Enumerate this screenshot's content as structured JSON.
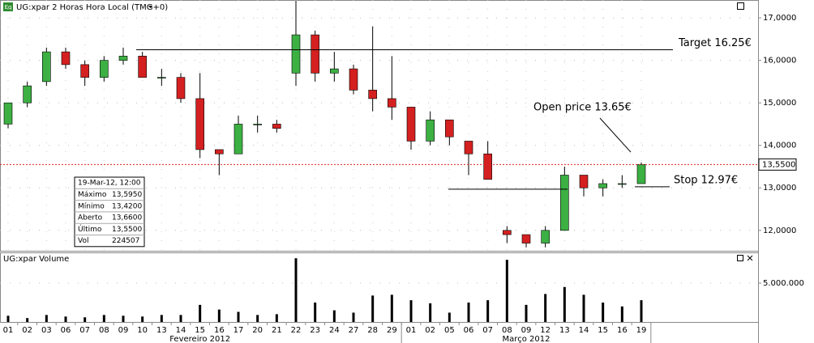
{
  "chart_data": {
    "type": "candlestick",
    "title": "UG:xpar 2 Horas Hora Local (TMG+0)",
    "badge": "Eq",
    "categories": [
      "01",
      "02",
      "03",
      "06",
      "07",
      "08",
      "09",
      "10",
      "13",
      "14",
      "15",
      "16",
      "17",
      "20",
      "21",
      "22",
      "23",
      "24",
      "27",
      "28",
      "29",
      "01",
      "02",
      "05",
      "06",
      "07",
      "08",
      "09",
      "12",
      "13",
      "14",
      "15",
      "16",
      "19"
    ],
    "months": [
      {
        "label": "Fevereiro 2012",
        "from": 0,
        "to": 20
      },
      {
        "label": "Março 2012",
        "from": 21,
        "to": 33
      }
    ],
    "open": [
      14.5,
      15.0,
      15.5,
      16.2,
      15.9,
      15.6,
      16.0,
      16.1,
      15.6,
      15.6,
      15.1,
      13.9,
      13.8,
      14.5,
      14.5,
      15.7,
      16.6,
      15.7,
      15.8,
      15.3,
      15.1,
      14.9,
      14.1,
      14.6,
      14.1,
      13.8,
      12.0,
      11.9,
      11.7,
      12.0,
      13.3,
      13.0,
      13.1,
      13.1
    ],
    "high": [
      15.0,
      15.5,
      16.3,
      16.3,
      16.0,
      16.1,
      16.3,
      16.2,
      15.8,
      15.7,
      15.7,
      13.9,
      14.7,
      14.7,
      14.6,
      17.4,
      16.7,
      16.2,
      15.9,
      16.8,
      16.1,
      14.9,
      14.8,
      14.6,
      14.1,
      14.1,
      12.1,
      11.9,
      12.1,
      13.5,
      13.3,
      13.2,
      13.3,
      13.6
    ],
    "low": [
      14.4,
      14.9,
      15.4,
      15.8,
      15.4,
      15.5,
      15.9,
      15.6,
      15.4,
      15.0,
      13.7,
      13.3,
      13.8,
      14.3,
      14.3,
      15.4,
      15.5,
      15.5,
      15.2,
      14.8,
      14.6,
      13.9,
      14.0,
      14.0,
      13.3,
      13.2,
      11.7,
      11.6,
      11.6,
      12.0,
      12.8,
      12.8,
      13.0,
      13.1
    ],
    "close": [
      15.0,
      15.4,
      16.2,
      15.9,
      15.6,
      16.0,
      16.1,
      15.6,
      15.6,
      15.1,
      13.9,
      13.8,
      14.5,
      14.5,
      14.4,
      16.6,
      15.7,
      15.8,
      15.3,
      15.1,
      14.9,
      14.1,
      14.6,
      14.2,
      13.8,
      13.2,
      11.9,
      11.7,
      12.0,
      13.3,
      13.0,
      13.1,
      13.1,
      13.55
    ],
    "up_color": "#3cb043",
    "down_color": "#d42020",
    "ylim": [
      11.52,
      17.42
    ],
    "yticks": [
      {
        "value": 12,
        "label": "12,0000"
      },
      {
        "value": 13,
        "label": "13,0000"
      },
      {
        "value": 14,
        "label": "14,0000"
      },
      {
        "value": 15,
        "label": "15,0000"
      },
      {
        "value": 16,
        "label": "16,0000"
      },
      {
        "value": 17,
        "label": "17,0000"
      }
    ],
    "grid": true,
    "last_price": {
      "value": 13.55,
      "label": "13,5500",
      "color": "#e02020"
    },
    "annotations": [
      {
        "text": "Target 16.25€",
        "value": 16.25
      },
      {
        "text": "Open price 13.65€",
        "value": 13.65
      },
      {
        "text": "Stop 12.97€",
        "value": 12.97
      }
    ],
    "info_box": [
      [
        "19-Mar-12, 12:00"
      ],
      [
        "Máximo",
        "13,5950"
      ],
      [
        "Mínimo",
        "13,4200"
      ],
      [
        "Aberto",
        "13,6600"
      ],
      [
        "Último",
        "13,5500"
      ],
      [
        "Vol",
        "224507"
      ]
    ],
    "volume_panel": {
      "title": "UG:xpar Volume",
      "color": "#000000",
      "values": [
        800000,
        500000,
        900000,
        700000,
        600000,
        900000,
        800000,
        700000,
        900000,
        900000,
        2200000,
        1600000,
        1300000,
        900000,
        1000000,
        8200000,
        2500000,
        1500000,
        1200000,
        3400000,
        3500000,
        2800000,
        2400000,
        1200000,
        2500000,
        2800000,
        8000000,
        2200000,
        3600000,
        4500000,
        3500000,
        2500000,
        2000000,
        2800000
      ],
      "ylim": [
        0,
        8850000
      ],
      "yticks": [
        {
          "value": 5000000,
          "label": "5.000.000"
        }
      ]
    }
  }
}
